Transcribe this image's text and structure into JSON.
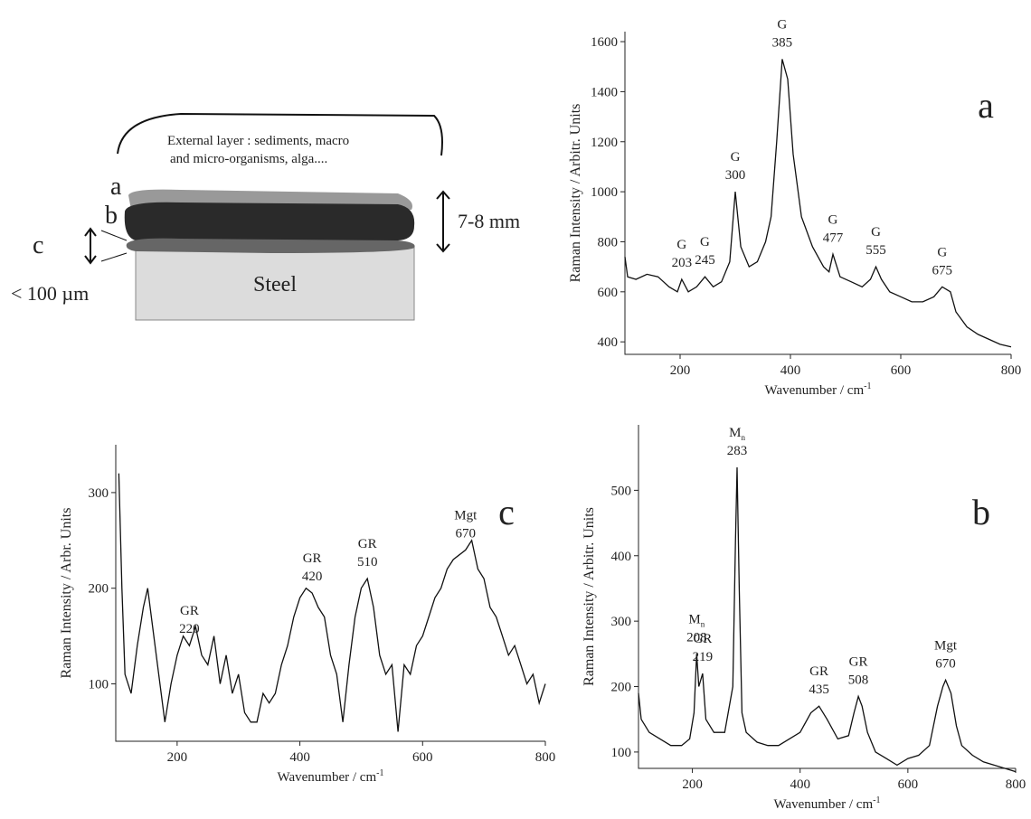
{
  "diagram": {
    "external_layer": [
      "External layer : sediments, macro",
      "and micro-organisms, alga...."
    ],
    "layer_a": "a",
    "layer_b": "b",
    "layer_c": "c",
    "thickness": "7-8 mm",
    "thin": "< 100 µm",
    "steel": "Steel"
  },
  "chart_data": [
    {
      "type": "line",
      "panel_label": "a",
      "x_label": "Wavenumber / cm",
      "x_label_sup": "-1",
      "y_label": "Raman Intensity / Arbitr. Units",
      "xlim": [
        100,
        800
      ],
      "xticks": [
        200,
        400,
        600,
        800
      ],
      "ylim": [
        350,
        1640
      ],
      "yticks": [
        400,
        600,
        800,
        1000,
        1200,
        1400,
        1600
      ],
      "color": "#111111",
      "x": [
        100,
        105,
        120,
        140,
        160,
        180,
        195,
        203,
        215,
        230,
        245,
        260,
        275,
        290,
        300,
        310,
        325,
        340,
        355,
        365,
        375,
        385,
        395,
        405,
        420,
        440,
        460,
        470,
        477,
        490,
        510,
        530,
        545,
        555,
        565,
        580,
        600,
        620,
        640,
        660,
        675,
        690,
        700,
        720,
        740,
        760,
        780,
        800
      ],
      "values": [
        740,
        660,
        650,
        670,
        660,
        620,
        600,
        650,
        600,
        620,
        660,
        620,
        640,
        720,
        1000,
        780,
        700,
        720,
        800,
        900,
        1200,
        1530,
        1450,
        1150,
        900,
        780,
        700,
        680,
        750,
        660,
        640,
        620,
        650,
        700,
        650,
        600,
        580,
        560,
        560,
        580,
        620,
        600,
        520,
        460,
        430,
        410,
        390,
        380
      ],
      "annotations": [
        {
          "label": "G",
          "value": 203
        },
        {
          "label": "G",
          "value": 245
        },
        {
          "label": "G",
          "value": 300
        },
        {
          "label": "G",
          "value": 385
        },
        {
          "label": "G",
          "value": 477
        },
        {
          "label": "G",
          "value": 555
        },
        {
          "label": "G",
          "value": 675
        }
      ]
    },
    {
      "type": "line",
      "panel_label": "c",
      "x_label": "Wavenumber / cm",
      "x_label_sup": "-1",
      "y_label": "Raman Intensity / Arbr. Units",
      "xlim": [
        100,
        800
      ],
      "xticks": [
        200,
        400,
        600,
        800
      ],
      "ylim": [
        40,
        350
      ],
      "yticks": [
        100,
        200,
        300
      ],
      "color": "#111111",
      "x": [
        105,
        110,
        115,
        125,
        135,
        145,
        152,
        160,
        170,
        180,
        190,
        200,
        210,
        220,
        230,
        240,
        250,
        260,
        270,
        280,
        290,
        300,
        310,
        320,
        330,
        340,
        350,
        360,
        370,
        380,
        390,
        400,
        410,
        420,
        430,
        440,
        450,
        460,
        470,
        480,
        490,
        500,
        510,
        520,
        530,
        540,
        550,
        560,
        570,
        580,
        590,
        600,
        610,
        620,
        630,
        640,
        650,
        660,
        670,
        680,
        690,
        700,
        710,
        720,
        730,
        740,
        750,
        760,
        770,
        780,
        790,
        800
      ],
      "values": [
        320,
        200,
        110,
        90,
        140,
        180,
        200,
        160,
        110,
        60,
        100,
        130,
        150,
        140,
        160,
        130,
        120,
        150,
        100,
        130,
        90,
        110,
        70,
        60,
        60,
        90,
        80,
        90,
        120,
        140,
        170,
        190,
        200,
        195,
        180,
        170,
        130,
        110,
        60,
        120,
        170,
        200,
        210,
        180,
        130,
        110,
        120,
        50,
        120,
        110,
        140,
        150,
        170,
        190,
        200,
        220,
        230,
        235,
        240,
        250,
        220,
        210,
        180,
        170,
        150,
        130,
        140,
        120,
        100,
        110,
        80,
        100
      ],
      "annotations": [
        {
          "label": "GR",
          "value": 220
        },
        {
          "label": "GR",
          "value": 420
        },
        {
          "label": "GR",
          "value": 510
        },
        {
          "label": "Mgt",
          "value": 670
        }
      ]
    },
    {
      "type": "line",
      "panel_label": "b",
      "x_label": "Wavenumber / cm",
      "x_label_sup": "-1",
      "y_label": "Raman Intensity / Arbitr. Units",
      "xlim": [
        100,
        800
      ],
      "xticks": [
        200,
        400,
        600,
        800
      ],
      "ylim": [
        75,
        600
      ],
      "yticks": [
        100,
        200,
        300,
        400,
        500
      ],
      "color": "#111111",
      "x": [
        100,
        105,
        120,
        140,
        160,
        180,
        195,
        203,
        208,
        212,
        219,
        225,
        240,
        260,
        275,
        280,
        283,
        287,
        292,
        300,
        320,
        340,
        360,
        380,
        400,
        420,
        435,
        450,
        470,
        490,
        500,
        508,
        515,
        525,
        540,
        560,
        580,
        600,
        620,
        640,
        655,
        665,
        670,
        680,
        690,
        700,
        720,
        740,
        760,
        780,
        800
      ],
      "values": [
        190,
        150,
        130,
        120,
        110,
        110,
        120,
        160,
        250,
        200,
        220,
        150,
        130,
        130,
        200,
        420,
        535,
        350,
        160,
        130,
        115,
        110,
        110,
        120,
        130,
        160,
        170,
        150,
        120,
        125,
        160,
        185,
        170,
        130,
        100,
        90,
        80,
        90,
        95,
        110,
        170,
        200,
        210,
        190,
        140,
        110,
        95,
        85,
        80,
        75,
        70
      ],
      "annotations": [
        {
          "label": "M",
          "sub": "n",
          "value": 208
        },
        {
          "label": "GR",
          "value": 219
        },
        {
          "label": "M",
          "sub": "n",
          "value": 283
        },
        {
          "label": "GR",
          "value": 435
        },
        {
          "label": "GR",
          "value": 508
        },
        {
          "label": "Mgt",
          "value": 670
        }
      ]
    }
  ]
}
